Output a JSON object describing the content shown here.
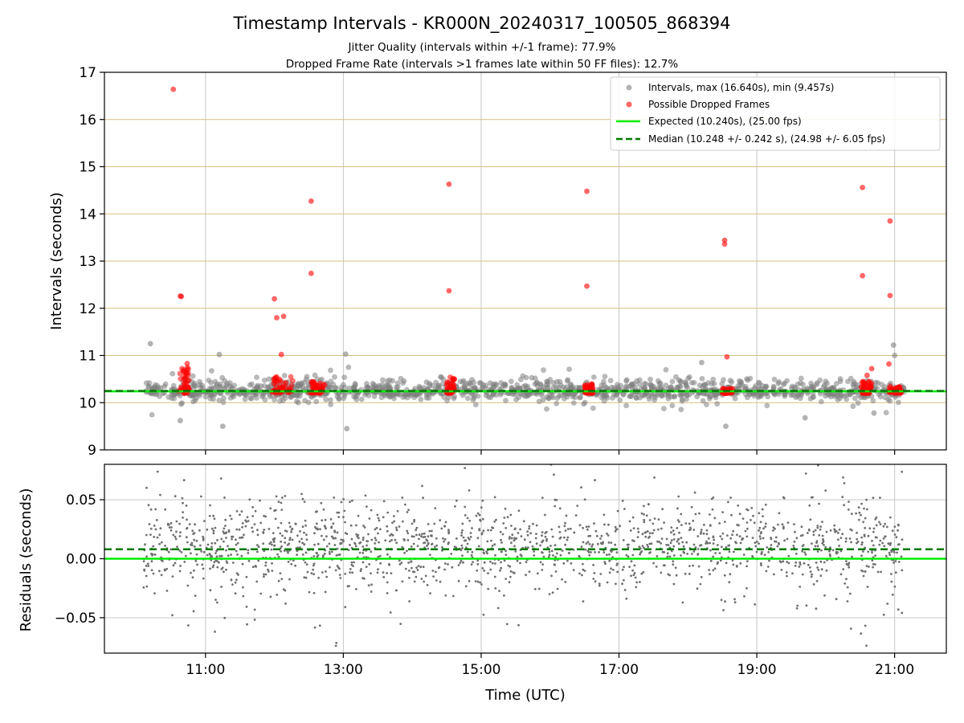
{
  "chart_data": [
    {
      "type": "scatter",
      "title": "Timestamp Intervals - KR000N_20240317_100505_868394",
      "subtitle": [
        "Jitter Quality (intervals within +/-1 frame): 77.9%",
        "Dropped Frame Rate (intervals >1 frames late within 50 FF files): 12.7%"
      ],
      "xlabel": "",
      "ylabel": "Intervals (seconds)",
      "xlim": [
        "09:32",
        "21:45"
      ],
      "ylim": [
        9,
        17
      ],
      "x_ticks": [
        "11:00",
        "13:00",
        "15:00",
        "17:00",
        "19:00",
        "21:00"
      ],
      "y_ticks": [
        "9",
        "10",
        "11",
        "12",
        "13",
        "14",
        "15",
        "16",
        "17"
      ],
      "grid": "vertical gray lines at hour ticks; tan horizontal lines at each integer second",
      "legend_position": "top-right",
      "legend": [
        "Intervals, max (16.640s), min (9.457s)",
        "Possible Dropped Frames",
        "Expected (10.240s), (25.00 fps)",
        "Median (10.248 +/- 0.242 s), (24.98 +/- 6.05 fps)"
      ],
      "expected_line": 10.24,
      "median_line": 10.248,
      "time_span": [
        "10:06",
        "21:08"
      ],
      "series": [
        {
          "name": "Intervals, max (16.640s), min (9.457s)",
          "color": "#808080",
          "style": "dense cloud, mostly 10.0 to 10.6 s",
          "outliers": [
            {
              "x": "10:12",
              "y": 11.25
            },
            {
              "x": "11:12",
              "y": 11.02
            },
            {
              "x": "13:02",
              "y": 11.03
            },
            {
              "x": "11:15",
              "y": 9.5
            },
            {
              "x": "13:03",
              "y": 9.45
            },
            {
              "x": "18:12",
              "y": 10.85
            },
            {
              "x": "18:33",
              "y": 9.5
            },
            {
              "x": "20:59",
              "y": 11.22
            },
            {
              "x": "21:00",
              "y": 11.0
            },
            {
              "x": "10:38",
              "y": 9.62
            },
            {
              "x": "19:42",
              "y": 9.68
            },
            {
              "x": "20:42",
              "y": 9.78
            }
          ]
        },
        {
          "name": "Possible Dropped Frames",
          "color": "#ff0000",
          "points": [
            {
              "x": "10:32",
              "y": 16.64
            },
            {
              "x": "10:38",
              "y": 12.26
            },
            {
              "x": "10:39",
              "y": 12.25
            },
            {
              "x": "10:44",
              "y": 10.83
            },
            {
              "x": "12:00",
              "y": 12.2
            },
            {
              "x": "12:02",
              "y": 11.8
            },
            {
              "x": "12:08",
              "y": 11.83
            },
            {
              "x": "12:06",
              "y": 11.02
            },
            {
              "x": "12:32",
              "y": 14.27
            },
            {
              "x": "12:32",
              "y": 12.74
            },
            {
              "x": "14:32",
              "y": 14.63
            },
            {
              "x": "14:32",
              "y": 12.37
            },
            {
              "x": "16:32",
              "y": 14.48
            },
            {
              "x": "16:32",
              "y": 12.47
            },
            {
              "x": "18:32",
              "y": 13.44
            },
            {
              "x": "18:32",
              "y": 13.36
            },
            {
              "x": "18:34",
              "y": 10.97
            },
            {
              "x": "20:32",
              "y": 14.56
            },
            {
              "x": "20:32",
              "y": 12.69
            },
            {
              "x": "20:56",
              "y": 13.85
            },
            {
              "x": "20:56",
              "y": 12.27
            },
            {
              "x": "20:55",
              "y": 10.82
            },
            {
              "x": "20:40",
              "y": 10.72
            },
            {
              "x": "20:36",
              "y": 10.58
            }
          ],
          "clusters": [
            {
              "x_range": [
                "10:36",
                "10:46"
              ],
              "y_range": [
                10.2,
                10.75
              ]
            },
            {
              "x_range": [
                "11:58",
                "12:16"
              ],
              "y_range": [
                10.2,
                10.55
              ]
            },
            {
              "x_range": [
                "12:30",
                "12:44"
              ],
              "y_range": [
                10.2,
                10.45
              ]
            },
            {
              "x_range": [
                "14:30",
                "14:38"
              ],
              "y_range": [
                10.2,
                10.55
              ]
            },
            {
              "x_range": [
                "16:30",
                "16:38"
              ],
              "y_range": [
                10.2,
                10.4
              ]
            },
            {
              "x_range": [
                "18:30",
                "18:40"
              ],
              "y_range": [
                10.2,
                10.3
              ]
            },
            {
              "x_range": [
                "20:30",
                "20:40"
              ],
              "y_range": [
                10.2,
                10.45
              ]
            },
            {
              "x_range": [
                "20:55",
                "21:06"
              ],
              "y_range": [
                10.2,
                10.35
              ]
            }
          ]
        }
      ]
    },
    {
      "type": "scatter",
      "title": "",
      "xlabel": "Time (UTC)",
      "ylabel": "Residuals (seconds)",
      "xlim": [
        "09:32",
        "21:45"
      ],
      "ylim": [
        -0.08,
        0.08
      ],
      "x_ticks": [
        "11:00",
        "13:00",
        "15:00",
        "17:00",
        "19:00",
        "21:00"
      ],
      "y_ticks": [
        "0.05",
        "0.00",
        "−0.05"
      ],
      "grid": "vertical and horizontal gray lines",
      "zero_line": 0.0,
      "median_offset_line": 0.008,
      "series": [
        {
          "name": "",
          "color": "#707070",
          "style": "dense cloud of small dots centred near +0.01 s, spread about -0.08 to +0.08 s"
        }
      ]
    }
  ],
  "colors": {
    "interval_points": "#808080",
    "dropped_points": "#ff0000",
    "expected_line": "#00ee00",
    "median_line": "#007a00",
    "horizontal_grid_top": "#d8bf80",
    "grid": "#c8c8c8"
  }
}
